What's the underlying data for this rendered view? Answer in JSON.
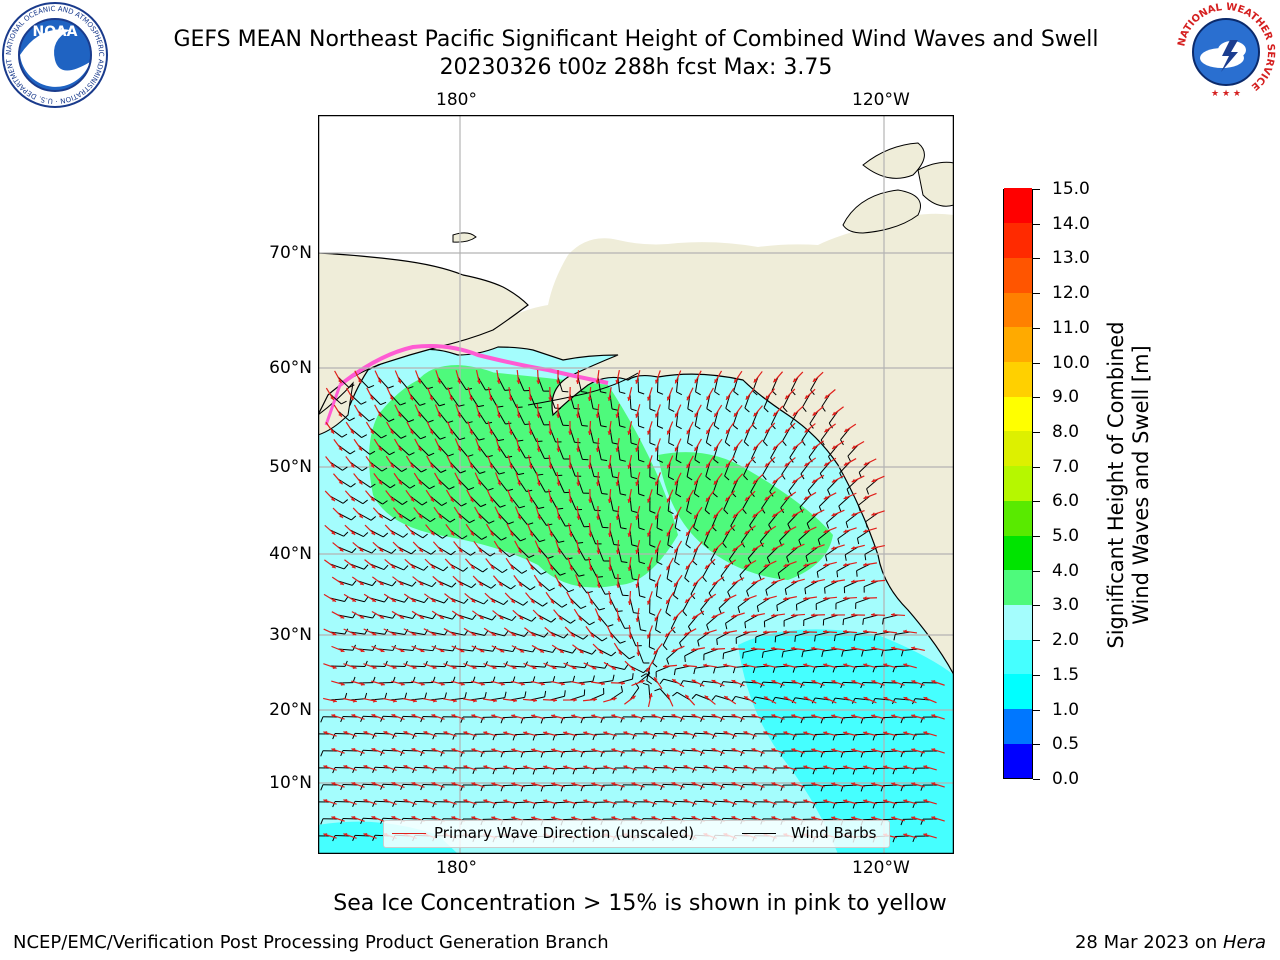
{
  "title": {
    "line1": "GEFS MEAN Northeast Pacific Significant Height of Combined Wind Waves and Swell",
    "line2": "20230326 t00z 288h fcst   Max: 3.75"
  },
  "logos": {
    "noaa_text": "NOAA",
    "noaa_ring": "NATIONAL OCEANIC AND ATMOSPHERIC ADMINISTRATION · U.S. DEPARTMENT OF COMMERCE",
    "nws_ring": "NATIONAL WEATHER SERVICE"
  },
  "map": {
    "lon_labels_top": [
      "180°",
      "120°W"
    ],
    "lon_labels_bottom": [
      "180°",
      "120°W"
    ],
    "lat_labels": [
      "70°N",
      "60°N",
      "50°N",
      "40°N",
      "30°N",
      "20°N",
      "10°N"
    ],
    "legend": {
      "wave": "Primary Wave Direction (unscaled)",
      "wind": "Wind Barbs",
      "wave_color": "#e0201b",
      "wind_color": "#000000"
    },
    "colors": {
      "land": "#efedd9",
      "ocean_default": "#a4fdfd",
      "grid": "#b3b3b3"
    }
  },
  "colorbar": {
    "ticks": [
      "0.0",
      "0.5",
      "1.0",
      "1.5",
      "2.0",
      "3.0",
      "4.0",
      "5.0",
      "6.0",
      "7.0",
      "8.0",
      "9.0",
      "10.0",
      "11.0",
      "12.0",
      "13.0",
      "14.0",
      "15.0"
    ],
    "colors": [
      "#0000ff",
      "#0077ff",
      "#00ffff",
      "#45ffff",
      "#a4fdfd",
      "#4efa7c",
      "#00e400",
      "#59ea00",
      "#b6f700",
      "#ddf000",
      "#ffff00",
      "#ffd000",
      "#ffaa00",
      "#ff8000",
      "#ff5500",
      "#ff2a00",
      "#ff0000"
    ],
    "label_line1": "Significant Height of Combined",
    "label_line2": "Wind Waves and Swell [m]"
  },
  "caption": "Sea Ice Concentration > 15% is shown in pink to yellow",
  "footer": {
    "left": "NCEP/EMC/Verification Post Processing Product Generation Branch",
    "right_date": "28 Mar 2023 on ",
    "right_machine": "Hera"
  }
}
